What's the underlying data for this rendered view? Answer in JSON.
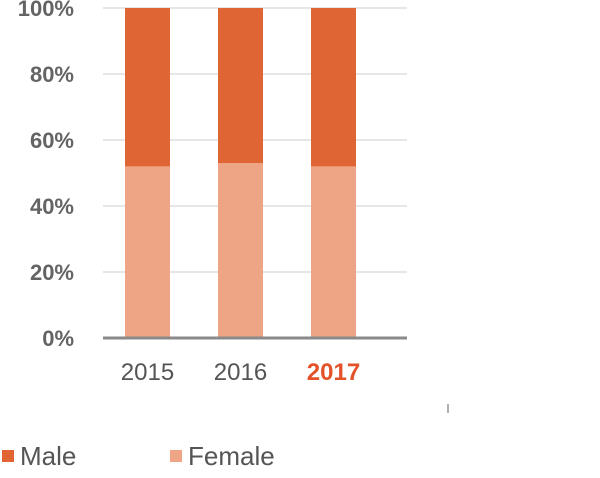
{
  "chart_data": {
    "type": "bar",
    "stacked": true,
    "categories": [
      "2015",
      "2016",
      "2017"
    ],
    "highlighted_category": "2017",
    "series": [
      {
        "name": "Female",
        "color": "#eda585",
        "values": [
          52,
          53,
          52
        ]
      },
      {
        "name": "Male",
        "color": "#e06535",
        "values": [
          48,
          47,
          48
        ]
      }
    ],
    "ylim": [
      0,
      100
    ],
    "yticks": [
      "0%",
      "20%",
      "40%",
      "60%",
      "80%",
      "100%"
    ],
    "grid": true,
    "legend_position": "bottom-left",
    "highlight_color": "#e4522a"
  },
  "legend": [
    {
      "label": "Male",
      "color": "#e06535"
    },
    {
      "label": "Female",
      "color": "#eda585"
    }
  ]
}
